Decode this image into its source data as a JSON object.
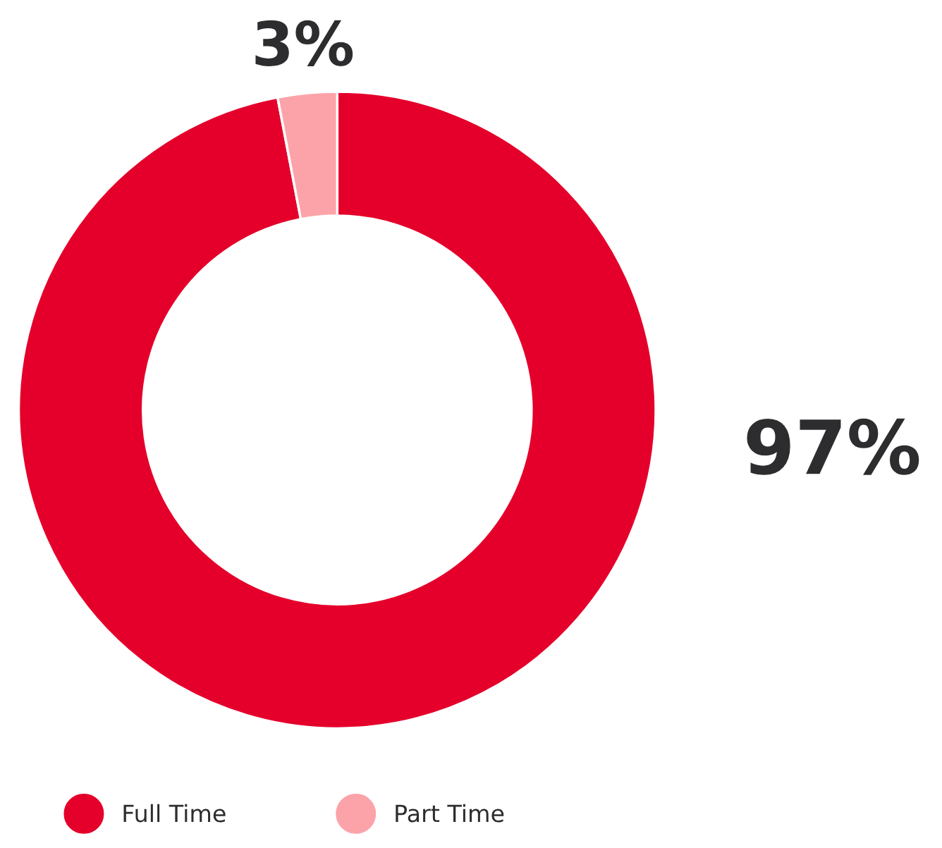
{
  "chart_data": {
    "type": "donut",
    "categories": [
      "Full Time",
      "Part Time"
    ],
    "values": [
      97,
      3
    ],
    "colors": [
      "#e4002b",
      "#fca3aa"
    ],
    "value_labels": [
      "97%",
      "3%"
    ],
    "legend": "bottom"
  }
}
